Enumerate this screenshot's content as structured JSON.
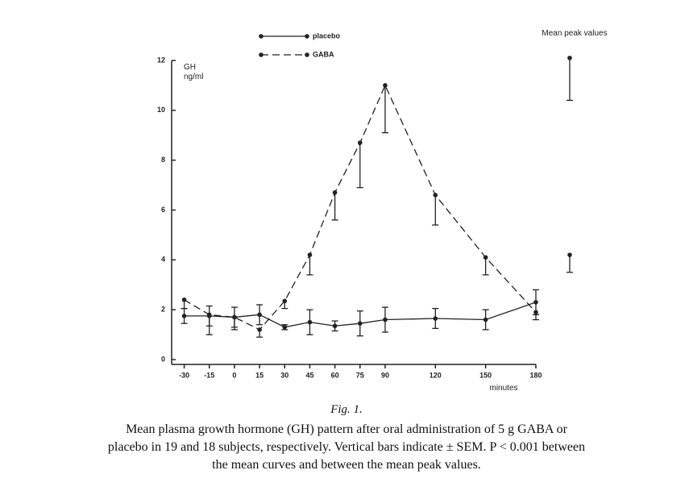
{
  "chart_data": {
    "type": "line",
    "ylabel": "GH ng/ml",
    "xlabel": "minutes",
    "peak_label": "Mean peak values",
    "figure_label": "Fig. 1.",
    "caption_lines": [
      "Mean plasma growth hormone (GH) pattern after oral administration of 5 g GABA or",
      "placebo in 19 and 18 subjects, respectively. Vertical bars indicate ± SEM. P < 0.001 between",
      "the mean curves and between the mean peak values."
    ],
    "x": [
      -30,
      -15,
      0,
      15,
      30,
      45,
      60,
      75,
      90,
      120,
      150,
      180
    ],
    "xlim": [
      -37.5,
      180
    ],
    "xticks": [
      -30,
      -15,
      0,
      15,
      30,
      45,
      60,
      75,
      90,
      120,
      150,
      180
    ],
    "ylim": [
      0,
      12
    ],
    "yticks": [
      0,
      2,
      4,
      6,
      8,
      10,
      12
    ],
    "series": [
      {
        "name": "placebo",
        "color": "#222",
        "dash": "solid",
        "error_direction": "both",
        "values": [
          1.75,
          1.75,
          1.7,
          1.8,
          1.3,
          1.5,
          1.35,
          1.45,
          1.6,
          1.65,
          1.6,
          2.3
        ],
        "errors": [
          0.3,
          0.4,
          0.4,
          0.4,
          0.1,
          0.5,
          0.2,
          0.5,
          0.5,
          0.4,
          0.4,
          0.5
        ],
        "peak": 4.2,
        "peak_error": 0.7
      },
      {
        "name": "GABA",
        "color": "#222",
        "dash": "dashed",
        "error_direction": "down",
        "values": [
          2.4,
          1.8,
          1.7,
          1.2,
          2.35,
          4.2,
          6.7,
          8.7,
          11,
          6.6,
          4.1,
          1.9
        ],
        "errors": [
          0.35,
          0.8,
          0.5,
          0.3,
          0.3,
          0.8,
          1.1,
          1.8,
          1.9,
          1.2,
          0.7,
          0.3
        ],
        "peak": 12.1,
        "peak_error": 1.7
      }
    ]
  }
}
